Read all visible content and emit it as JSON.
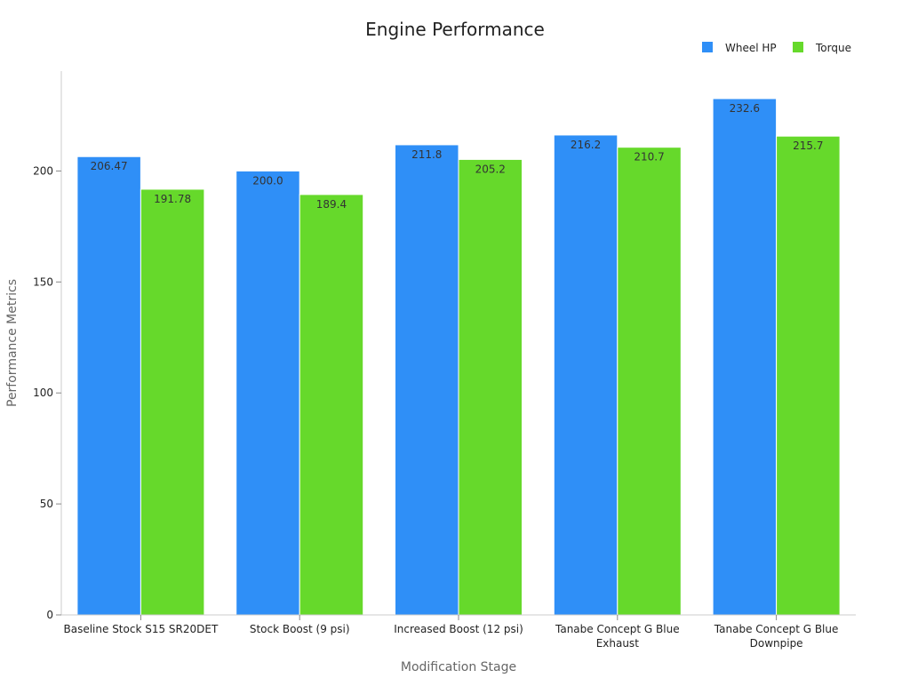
{
  "chart_data": {
    "type": "bar",
    "title": "Engine Performance",
    "xlabel": "Modification Stage",
    "ylabel": "Performance Metrics",
    "categories": [
      [
        "Baseline Stock S15 SR20DET"
      ],
      [
        "Stock Boost (9 psi)"
      ],
      [
        "Increased Boost (12 psi)"
      ],
      [
        "Tanabe Concept G Blue",
        "Exhaust"
      ],
      [
        "Tanabe Concept G Blue",
        "Downpipe"
      ]
    ],
    "series": [
      {
        "name": "Wheel HP",
        "color": "#2f8ff7",
        "values": [
          206.47,
          200.0,
          211.8,
          216.2,
          232.6
        ],
        "labels": [
          "206.47",
          "200.0",
          "211.8",
          "216.2",
          "232.6"
        ]
      },
      {
        "name": "Torque",
        "color": "#66d92b",
        "values": [
          191.78,
          189.4,
          205.2,
          210.7,
          215.7
        ],
        "labels": [
          "191.78",
          "189.4",
          "205.2",
          "210.7",
          "215.7"
        ]
      }
    ],
    "ylim": [
      0,
      245
    ],
    "yticks": [
      0,
      50,
      100,
      150,
      200
    ],
    "grid": false,
    "legend": "top-right"
  }
}
